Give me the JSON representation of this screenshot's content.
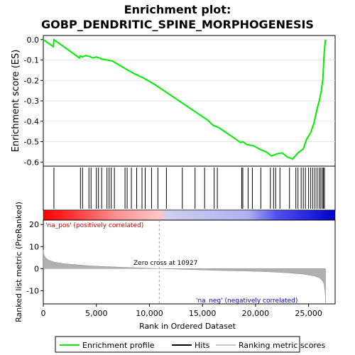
{
  "chart_data": {
    "type": "line",
    "title_line1": "Enrichment plot:",
    "title_line2": "GOBP_DENDRITIC_SPINE_MORPHOGENESIS",
    "es_panel": {
      "ylabel": "Enrichment score (ES)",
      "ylim": [
        -0.62,
        0.02
      ],
      "yticks": [
        0.0,
        -0.1,
        -0.2,
        -0.3,
        -0.4,
        -0.5,
        -0.6
      ],
      "ytick_labels": [
        "0.0",
        "-0.1",
        "-0.2",
        "-0.3",
        "-0.4",
        "-0.5",
        "-0.6"
      ],
      "line_color": "#00ee00",
      "profile": {
        "x": [
          0,
          950,
          1000,
          3400,
          3500,
          3700,
          4000,
          4300,
          4700,
          5000,
          5500,
          6000,
          6500,
          7000,
          7800,
          8500,
          9500,
          10500,
          11500,
          12500,
          13500,
          14500,
          15500,
          16000,
          16500,
          17500,
          18600,
          18800,
          19200,
          19800,
          20500,
          21000,
          21500,
          22000,
          22500,
          23000,
          23500,
          24000,
          24500,
          24800,
          25200,
          25500,
          25800,
          26000,
          26200,
          26350,
          26450,
          26550,
          26600
        ],
        "y": [
          0.0,
          -0.035,
          0.0,
          -0.09,
          -0.08,
          -0.085,
          -0.078,
          -0.082,
          -0.09,
          -0.085,
          -0.095,
          -0.1,
          -0.105,
          -0.12,
          -0.145,
          -0.165,
          -0.19,
          -0.22,
          -0.255,
          -0.29,
          -0.325,
          -0.36,
          -0.395,
          -0.42,
          -0.43,
          -0.465,
          -0.505,
          -0.5,
          -0.515,
          -0.52,
          -0.54,
          -0.55,
          -0.57,
          -0.56,
          -0.555,
          -0.575,
          -0.585,
          -0.555,
          -0.535,
          -0.49,
          -0.455,
          -0.41,
          -0.34,
          -0.3,
          -0.25,
          -0.19,
          -0.08,
          -0.02,
          0.0
        ]
      }
    },
    "hits_panel": {
      "hit_positions": [
        1000,
        3500,
        3700,
        4300,
        4500,
        5000,
        5200,
        5500,
        6000,
        6200,
        6400,
        6700,
        7700,
        7900,
        8300,
        8800,
        9300,
        9600,
        10200,
        10800,
        11600,
        13100,
        14300,
        15200,
        16100,
        16400,
        18700,
        18800,
        19300,
        19700,
        20500,
        21400,
        21700,
        21900,
        22300,
        23200,
        23800,
        24000,
        24300,
        24500,
        24700,
        25000,
        25200,
        25400,
        25600,
        25800,
        26000,
        26150,
        26300,
        26400,
        26500
      ]
    },
    "metric_panel": {
      "ylabel": "Ranked list metric (PreRanked)",
      "ylim": [
        -16,
        22
      ],
      "yticks": [
        20,
        10,
        0,
        -10
      ],
      "ytick_labels": [
        "20",
        "10",
        "0",
        "-10"
      ],
      "annotation_pos": "'na_pos' (positively correlated)",
      "annotation_neg": "'na_neg' (negatively correlated)",
      "zero_cross_label": "Zero cross at 10927",
      "zero_cross": 10927,
      "metric_curve": {
        "x": [
          0,
          50,
          200,
          500,
          1000,
          2000,
          3000,
          4000,
          5000,
          7000,
          9000,
          10927,
          13000,
          15000,
          17000,
          19000,
          21000,
          23000,
          24500,
          25500,
          26000,
          26300,
          26450,
          26550,
          26600
        ],
        "y": [
          8.5,
          6.5,
          5.0,
          3.8,
          3.0,
          2.2,
          1.8,
          1.4,
          1.1,
          0.7,
          0.35,
          0.0,
          -0.3,
          -0.6,
          -0.9,
          -1.1,
          -1.4,
          -1.9,
          -2.5,
          -3.3,
          -4.2,
          -5.5,
          -7.0,
          -10.5,
          -15.5
        ]
      }
    },
    "xaxis": {
      "xlabel": "Rank in Ordered Dataset",
      "xlim": [
        0,
        27500
      ],
      "xticks": [
        0,
        5000,
        10000,
        15000,
        20000,
        25000
      ],
      "xtick_labels": [
        "0",
        "5,000",
        "10,000",
        "15,000",
        "20,000",
        "25,000"
      ]
    },
    "legend": {
      "items": [
        {
          "label": "Enrichment profile",
          "color": "#00ee00"
        },
        {
          "label": "Hits",
          "color": "#000000"
        },
        {
          "label": "Ranking metric scores",
          "color": "#c8c8c8"
        }
      ],
      "placement": "bottom"
    }
  }
}
